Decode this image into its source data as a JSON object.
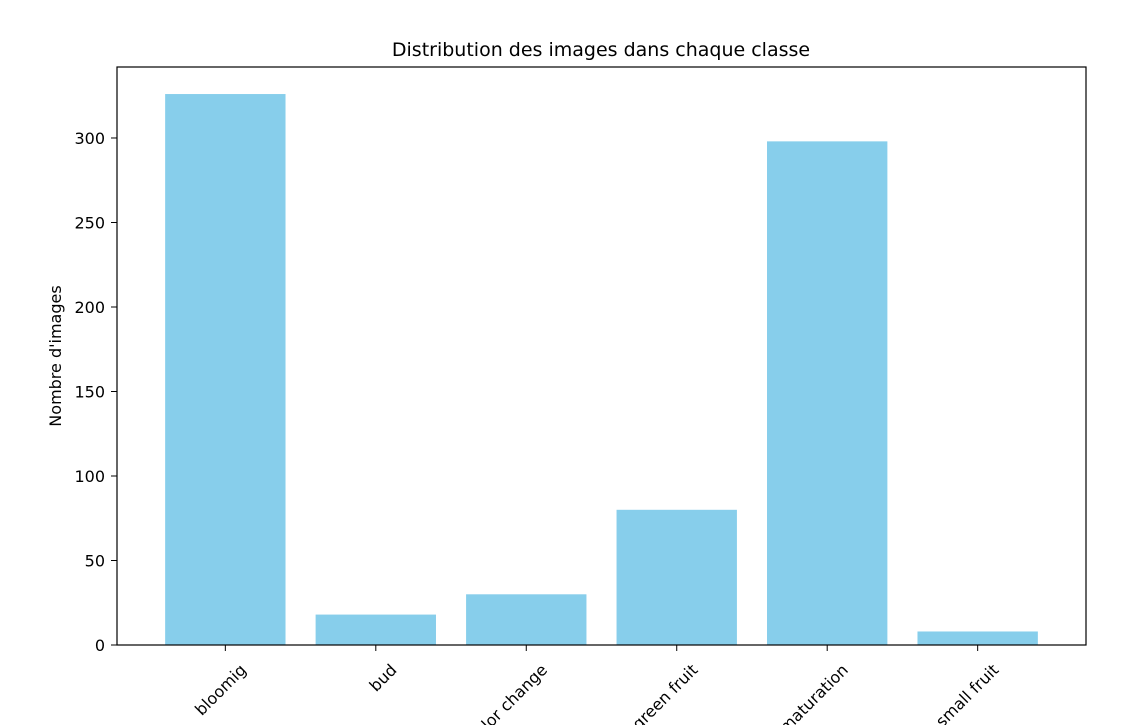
{
  "chart_data": {
    "type": "bar",
    "title": "Distribution des images dans chaque classe",
    "xlabel": "",
    "ylabel": "Nombre d'images",
    "categories": [
      "bloomig",
      "bud",
      "color change",
      "green fruit",
      "maturation",
      "small fruit"
    ],
    "values": [
      326,
      18,
      30,
      80,
      298,
      8
    ],
    "ylim": [
      0,
      342
    ],
    "yticks": [
      0,
      50,
      100,
      150,
      200,
      250,
      300
    ],
    "bar_color": "#87CEEB",
    "grid": false,
    "legend": "none"
  }
}
